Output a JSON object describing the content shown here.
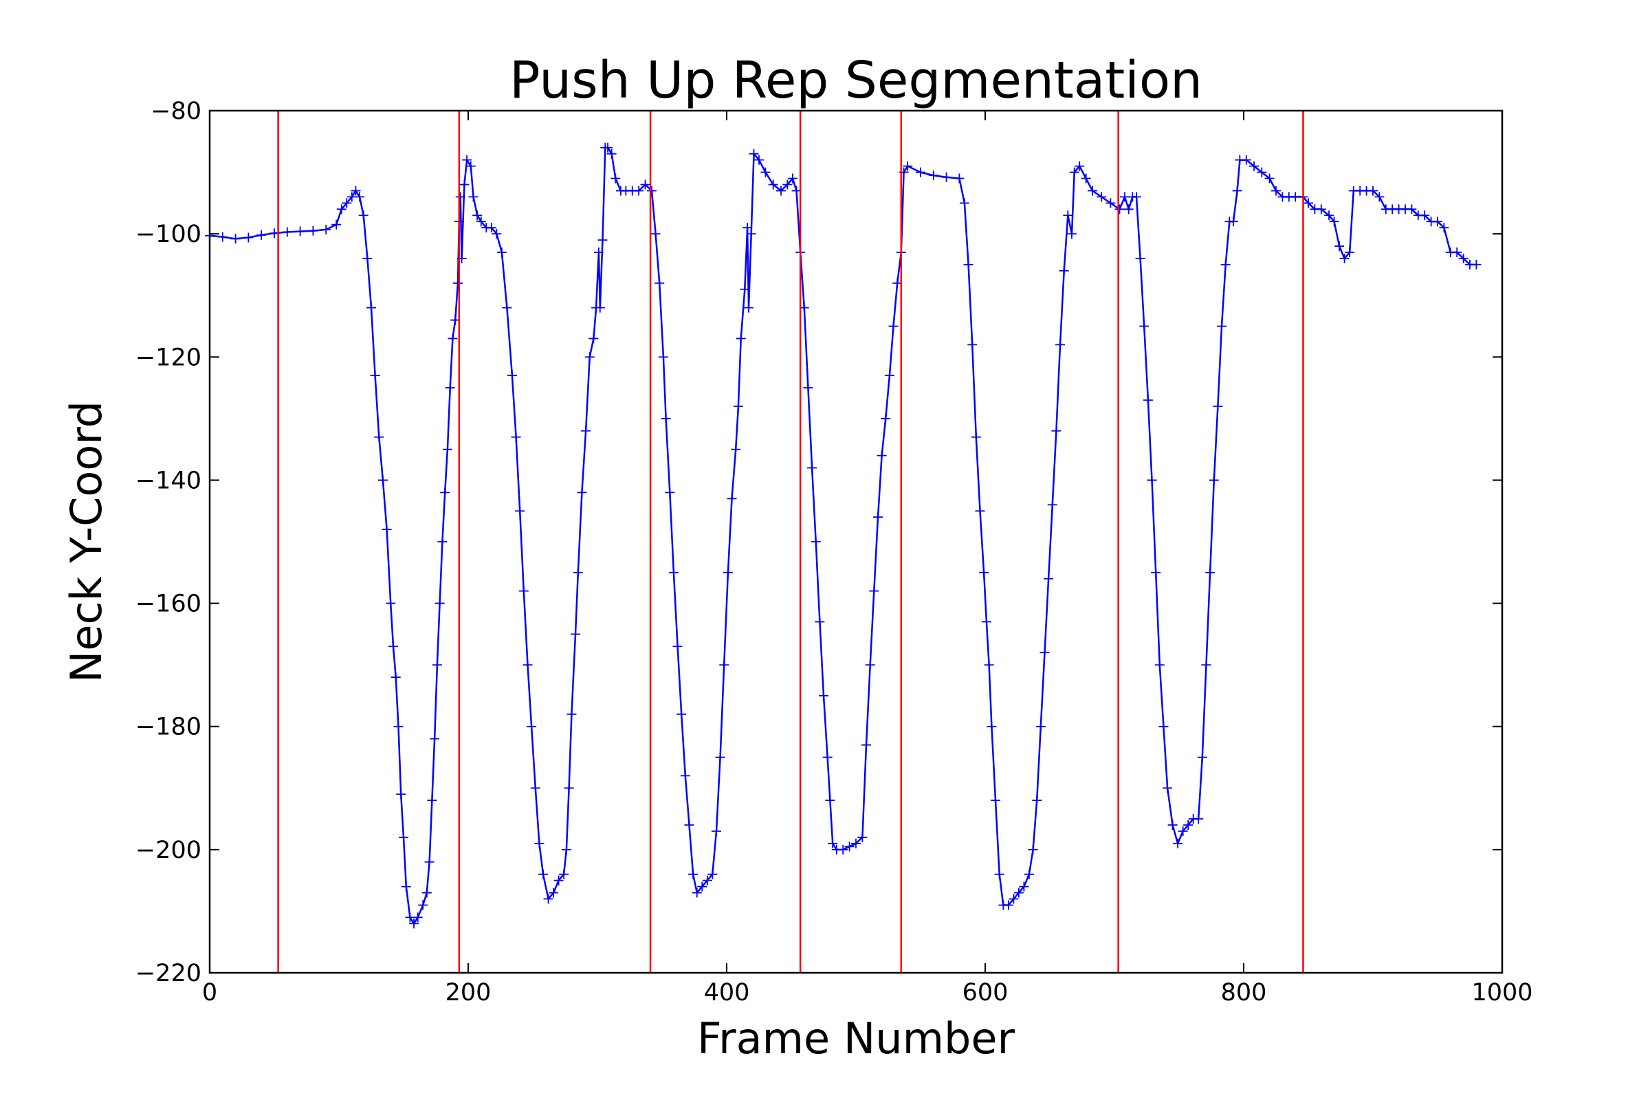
{
  "chart_data": {
    "type": "line",
    "title": "Push Up Rep Segmentation",
    "xlabel": "Frame Number",
    "ylabel": "Neck Y-Coord",
    "xlim": [
      0,
      1000
    ],
    "ylim": [
      -220,
      -80
    ],
    "xticks": [
      0,
      200,
      400,
      600,
      800,
      1000
    ],
    "yticks": [
      -80,
      -100,
      -120,
      -140,
      -160,
      -180,
      -200,
      -220
    ],
    "xtick_labels": [
      "0",
      "200",
      "400",
      "600",
      "800",
      "1000"
    ],
    "ytick_labels": [
      "−80",
      "−100",
      "−120",
      "−140",
      "−160",
      "−180",
      "−200",
      "−220"
    ],
    "grid": false,
    "legend": "none",
    "series": [
      {
        "color": "#0000ff",
        "marker": "+",
        "points": [
          [
            0,
            -100.3
          ],
          [
            10,
            -100.5
          ],
          [
            20,
            -100.8
          ],
          [
            30,
            -100.6
          ],
          [
            40,
            -100.2
          ],
          [
            50,
            -99.9
          ],
          [
            60,
            -99.7
          ],
          [
            70,
            -99.6
          ],
          [
            80,
            -99.5
          ],
          [
            90,
            -99.3
          ],
          [
            98,
            -98.5
          ],
          [
            102,
            -96
          ],
          [
            106,
            -95
          ],
          [
            110,
            -94
          ],
          [
            113,
            -93
          ],
          [
            116,
            -94
          ],
          [
            119,
            -97
          ],
          [
            122,
            -104
          ],
          [
            125,
            -112
          ],
          [
            128,
            -123
          ],
          [
            131,
            -133
          ],
          [
            134,
            -140
          ],
          [
            137,
            -148
          ],
          [
            140,
            -160
          ],
          [
            142,
            -167
          ],
          [
            144,
            -172
          ],
          [
            146,
            -180
          ],
          [
            148,
            -191
          ],
          [
            150,
            -198
          ],
          [
            152,
            -206
          ],
          [
            155,
            -211
          ],
          [
            158,
            -212
          ],
          [
            161,
            -211
          ],
          [
            165,
            -209
          ],
          [
            168,
            -207
          ],
          [
            170,
            -202
          ],
          [
            172,
            -192
          ],
          [
            174,
            -182
          ],
          [
            176,
            -170
          ],
          [
            178,
            -160
          ],
          [
            180,
            -150
          ],
          [
            182,
            -142
          ],
          [
            184,
            -135
          ],
          [
            186,
            -125
          ],
          [
            188,
            -117
          ],
          [
            190,
            -114
          ],
          [
            192,
            -108
          ],
          [
            193,
            -98
          ],
          [
            194,
            -94
          ],
          [
            195,
            -104
          ],
          [
            197,
            -92
          ],
          [
            199,
            -88
          ],
          [
            202,
            -89
          ],
          [
            204,
            -94
          ],
          [
            207,
            -97
          ],
          [
            210,
            -98
          ],
          [
            214,
            -99
          ],
          [
            218,
            -99
          ],
          [
            222,
            -100
          ],
          [
            226,
            -103
          ],
          [
            230,
            -112
          ],
          [
            234,
            -123
          ],
          [
            237,
            -133
          ],
          [
            240,
            -145
          ],
          [
            243,
            -158
          ],
          [
            246,
            -170
          ],
          [
            249,
            -180
          ],
          [
            252,
            -190
          ],
          [
            255,
            -199
          ],
          [
            258,
            -204
          ],
          [
            262,
            -208
          ],
          [
            266,
            -207
          ],
          [
            270,
            -205
          ],
          [
            274,
            -204
          ],
          [
            276,
            -200
          ],
          [
            278,
            -190
          ],
          [
            280,
            -178
          ],
          [
            283,
            -165
          ],
          [
            285,
            -155
          ],
          [
            288,
            -142
          ],
          [
            291,
            -132
          ],
          [
            294,
            -120
          ],
          [
            297,
            -117
          ],
          [
            299,
            -112
          ],
          [
            301,
            -103
          ],
          [
            302,
            -112
          ],
          [
            304,
            -101
          ],
          [
            306,
            -86
          ],
          [
            308,
            -86
          ],
          [
            311,
            -87
          ],
          [
            314,
            -91
          ],
          [
            318,
            -93
          ],
          [
            322,
            -93
          ],
          [
            327,
            -93
          ],
          [
            332,
            -93
          ],
          [
            337,
            -92
          ],
          [
            342,
            -93
          ],
          [
            345,
            -100
          ],
          [
            348,
            -108
          ],
          [
            351,
            -120
          ],
          [
            353,
            -130
          ],
          [
            356,
            -142
          ],
          [
            359,
            -155
          ],
          [
            362,
            -167
          ],
          [
            365,
            -178
          ],
          [
            368,
            -188
          ],
          [
            371,
            -196
          ],
          [
            374,
            -204
          ],
          [
            377,
            -207
          ],
          [
            381,
            -206
          ],
          [
            385,
            -205
          ],
          [
            389,
            -204
          ],
          [
            392,
            -197
          ],
          [
            395,
            -185
          ],
          [
            398,
            -170
          ],
          [
            401,
            -155
          ],
          [
            404,
            -143
          ],
          [
            407,
            -135
          ],
          [
            409,
            -128
          ],
          [
            411,
            -117
          ],
          [
            414,
            -109
          ],
          [
            416,
            -99
          ],
          [
            417,
            -112
          ],
          [
            419,
            -100
          ],
          [
            421,
            -87
          ],
          [
            425,
            -88
          ],
          [
            430,
            -90
          ],
          [
            436,
            -92
          ],
          [
            442,
            -93
          ],
          [
            447,
            -92
          ],
          [
            451,
            -91
          ],
          [
            454,
            -93
          ],
          [
            457,
            -103
          ],
          [
            460,
            -112
          ],
          [
            463,
            -125
          ],
          [
            466,
            -138
          ],
          [
            469,
            -150
          ],
          [
            472,
            -163
          ],
          [
            475,
            -175
          ],
          [
            478,
            -185
          ],
          [
            480,
            -192
          ],
          [
            482,
            -199
          ],
          [
            485,
            -200
          ],
          [
            490,
            -200
          ],
          [
            495,
            -199.5
          ],
          [
            500,
            -199
          ],
          [
            505,
            -198
          ],
          [
            508,
            -183
          ],
          [
            511,
            -170
          ],
          [
            514,
            -158
          ],
          [
            517,
            -146
          ],
          [
            520,
            -136
          ],
          [
            523,
            -130
          ],
          [
            526,
            -123
          ],
          [
            529,
            -115
          ],
          [
            532,
            -108
          ],
          [
            535,
            -103
          ],
          [
            537,
            -90
          ],
          [
            540,
            -89
          ],
          [
            550,
            -90
          ],
          [
            560,
            -90.5
          ],
          [
            570,
            -90.8
          ],
          [
            580,
            -91
          ],
          [
            584,
            -95
          ],
          [
            587,
            -105
          ],
          [
            590,
            -118
          ],
          [
            593,
            -133
          ],
          [
            596,
            -145
          ],
          [
            599,
            -155
          ],
          [
            601,
            -163
          ],
          [
            603,
            -170
          ],
          [
            605,
            -180
          ],
          [
            608,
            -192
          ],
          [
            611,
            -204
          ],
          [
            614,
            -209
          ],
          [
            618,
            -209
          ],
          [
            622,
            -208
          ],
          [
            626,
            -207
          ],
          [
            630,
            -206
          ],
          [
            634,
            -204
          ],
          [
            637,
            -200
          ],
          [
            640,
            -192
          ],
          [
            643,
            -180
          ],
          [
            646,
            -168
          ],
          [
            649,
            -156
          ],
          [
            652,
            -144
          ],
          [
            655,
            -132
          ],
          [
            658,
            -118
          ],
          [
            661,
            -106
          ],
          [
            664,
            -97
          ],
          [
            667,
            -100
          ],
          [
            669,
            -90
          ],
          [
            673,
            -89
          ],
          [
            678,
            -91
          ],
          [
            683,
            -93
          ],
          [
            690,
            -94
          ],
          [
            697,
            -95
          ],
          [
            704,
            -96
          ],
          [
            708,
            -94
          ],
          [
            711,
            -96
          ],
          [
            714,
            -94
          ],
          [
            717,
            -94
          ],
          [
            720,
            -104
          ],
          [
            723,
            -115
          ],
          [
            726,
            -127
          ],
          [
            729,
            -140
          ],
          [
            732,
            -155
          ],
          [
            735,
            -170
          ],
          [
            738,
            -180
          ],
          [
            741,
            -190
          ],
          [
            745,
            -196
          ],
          [
            749,
            -199
          ],
          [
            753,
            -197
          ],
          [
            757,
            -196
          ],
          [
            761,
            -195
          ],
          [
            765,
            -195
          ],
          [
            768,
            -185
          ],
          [
            771,
            -170
          ],
          [
            774,
            -155
          ],
          [
            777,
            -140
          ],
          [
            780,
            -128
          ],
          [
            783,
            -115
          ],
          [
            786,
            -105
          ],
          [
            789,
            -98
          ],
          [
            792,
            -98
          ],
          [
            795,
            -93
          ],
          [
            797,
            -88
          ],
          [
            802,
            -88
          ],
          [
            808,
            -89
          ],
          [
            814,
            -90
          ],
          [
            820,
            -91
          ],
          [
            825,
            -93
          ],
          [
            830,
            -94
          ],
          [
            835,
            -94
          ],
          [
            840,
            -94
          ],
          [
            846,
            -94
          ],
          [
            850,
            -95
          ],
          [
            855,
            -96
          ],
          [
            860,
            -96
          ],
          [
            866,
            -97
          ],
          [
            870,
            -98
          ],
          [
            874,
            -102
          ],
          [
            878,
            -104
          ],
          [
            882,
            -103
          ],
          [
            885,
            -93
          ],
          [
            890,
            -93
          ],
          [
            895,
            -93
          ],
          [
            900,
            -93
          ],
          [
            905,
            -94
          ],
          [
            910,
            -96
          ],
          [
            915,
            -96
          ],
          [
            920,
            -96
          ],
          [
            925,
            -96
          ],
          [
            930,
            -96
          ],
          [
            935,
            -97
          ],
          [
            940,
            -97
          ],
          [
            945,
            -98
          ],
          [
            950,
            -98
          ],
          [
            955,
            -99
          ],
          [
            960,
            -103
          ],
          [
            965,
            -103
          ],
          [
            970,
            -104
          ],
          [
            975,
            -105
          ],
          [
            980,
            -105
          ]
        ]
      }
    ],
    "segment_boundaries": {
      "color": "#ff0000",
      "x": [
        53,
        193,
        341,
        457,
        535,
        703,
        846
      ]
    }
  }
}
